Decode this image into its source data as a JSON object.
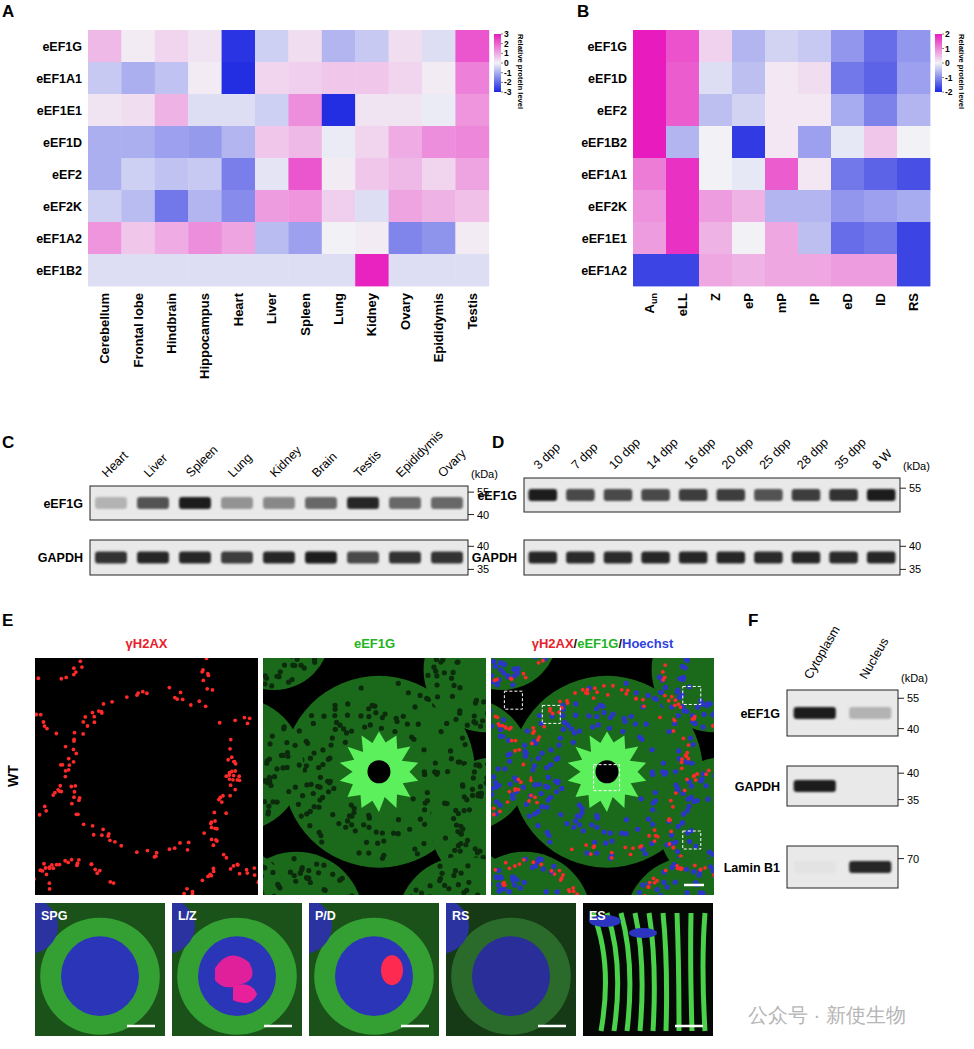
{
  "chart_data": [
    {
      "type": "heatmap",
      "panel": "A",
      "rows": [
        "eEF1G",
        "eEF1A1",
        "eEF1E1",
        "eEF1D",
        "eEF2",
        "eEF2K",
        "eEF1A2",
        "eEF1B2"
      ],
      "columns": [
        "Cerebellum",
        "Frontal lobe",
        "Hindbrain",
        "Hippocampus",
        "Heart",
        "Liver",
        "Spleen",
        "Lung",
        "Kidney",
        "Ovary",
        "Epididymis",
        "Testis"
      ],
      "values": [
        [
          0.8,
          0.1,
          0.4,
          0.2,
          -2.8,
          -0.5,
          0.3,
          -0.9,
          -0.6,
          0.3,
          -0.3,
          2.2
        ],
        [
          -0.6,
          -1.0,
          -0.7,
          0.1,
          -2.9,
          0.4,
          0.5,
          0.6,
          0.6,
          0.4,
          0.1,
          1.6
        ],
        [
          0.2,
          0.3,
          0.9,
          -0.3,
          -0.3,
          -0.5,
          1.4,
          -2.9,
          0.2,
          0.2,
          -0.1,
          1.3
        ],
        [
          -1.0,
          -1.0,
          -1.2,
          -1.3,
          -0.9,
          0.6,
          0.8,
          -0.1,
          0.4,
          1.0,
          1.4,
          1.5
        ],
        [
          -1.0,
          -0.5,
          -0.7,
          -0.6,
          -1.7,
          -0.2,
          2.2,
          0.1,
          0.6,
          0.8,
          0.4,
          1.1
        ],
        [
          -0.5,
          -0.8,
          -1.8,
          -0.9,
          -1.5,
          1.2,
          1.3,
          0.5,
          -0.3,
          1.1,
          0.9,
          0.7
        ],
        [
          1.3,
          0.6,
          1.0,
          1.4,
          1.1,
          -0.8,
          -1.2,
          0.0,
          0.1,
          -1.6,
          -1.4,
          0.1
        ],
        [
          -0.3,
          -0.3,
          -0.3,
          -0.3,
          -0.3,
          -0.3,
          -0.3,
          -0.3,
          2.9,
          -0.3,
          -0.3,
          -0.3
        ]
      ],
      "colorbar": {
        "range": [
          -3,
          3
        ],
        "ticks": [
          3,
          2,
          1,
          0,
          -1,
          -2,
          -3
        ],
        "label": "Relative protein level"
      }
    },
    {
      "type": "heatmap",
      "panel": "B",
      "rows": [
        "eEF1G",
        "eEF1D",
        "eEF2",
        "eEF1B2",
        "eEF1A1",
        "eEF2K",
        "eEF1E1",
        "eEF1A2"
      ],
      "columns": [
        {
          "text": "A",
          "subscript": "un"
        },
        "eLL",
        "Z",
        "eP",
        "mP",
        "lP",
        "eD",
        "lD",
        "RS"
      ],
      "values": [
        [
          2.2,
          1.5,
          0.3,
          -0.6,
          -0.3,
          -0.4,
          -0.9,
          -1.3,
          -0.9
        ],
        [
          2.2,
          1.4,
          -0.2,
          -0.5,
          0.1,
          0.2,
          -1.2,
          -1.4,
          -0.8
        ],
        [
          2.2,
          1.4,
          -0.5,
          -0.3,
          0.1,
          0.1,
          -0.7,
          -1.1,
          -0.6
        ],
        [
          2.2,
          -0.6,
          0.0,
          -1.8,
          0.1,
          -0.8,
          -0.1,
          0.4,
          0.0
        ],
        [
          1.1,
          1.8,
          0.0,
          -0.1,
          1.4,
          0.1,
          -1.2,
          -1.4,
          -1.6
        ],
        [
          0.9,
          1.8,
          0.8,
          0.6,
          -0.6,
          -0.6,
          -0.9,
          -0.8,
          -0.7
        ],
        [
          0.8,
          1.8,
          0.6,
          0.0,
          0.7,
          -0.5,
          -1.3,
          -1.2,
          -1.7
        ],
        [
          -1.7,
          -1.7,
          0.7,
          0.6,
          0.7,
          0.7,
          0.8,
          0.8,
          -1.7
        ]
      ],
      "colorbar": {
        "range": [
          -2,
          2
        ],
        "ticks": [
          2,
          1,
          0,
          -1,
          -2
        ],
        "label": "Relative protein level"
      }
    }
  ],
  "blots": [
    {
      "panel": "C",
      "unit": "(kDa)",
      "lanes": [
        "Heart",
        "Liver",
        "Spleen",
        "Lung",
        "Kidney",
        "Brain",
        "Testis",
        "Epididymis",
        "Ovary"
      ],
      "rows": [
        {
          "name": "eEF1G",
          "intensity": [
            0.25,
            0.7,
            0.95,
            0.4,
            0.45,
            0.6,
            0.9,
            0.6,
            0.6
          ],
          "mw": [
            55,
            40
          ]
        },
        {
          "name": "GAPDH",
          "intensity": [
            0.85,
            0.9,
            0.9,
            0.8,
            0.9,
            0.95,
            0.75,
            0.85,
            0.85
          ],
          "mw": [
            40,
            35
          ]
        }
      ]
    },
    {
      "panel": "D",
      "unit": "(kDa)",
      "lanes": [
        "3 dpp",
        "7 dpp",
        "10 dpp",
        "14 dpp",
        "16 dpp",
        "20 dpp",
        "25 dpp",
        "28 dpp",
        "35 dpp",
        "8 W"
      ],
      "rows": [
        {
          "name": "eEF1G",
          "intensity": [
            0.95,
            0.75,
            0.75,
            0.75,
            0.8,
            0.8,
            0.7,
            0.8,
            0.85,
            0.95
          ],
          "mw": [
            55
          ]
        },
        {
          "name": "GAPDH",
          "intensity": [
            0.9,
            0.88,
            0.88,
            0.9,
            0.9,
            0.9,
            0.88,
            0.9,
            0.88,
            0.9
          ],
          "mw": [
            40,
            35
          ]
        }
      ]
    },
    {
      "panel": "F",
      "unit": "(kDa)",
      "lanes": [
        "Cytoplasm",
        "Nucleus"
      ],
      "rows": [
        {
          "name": "eEF1G",
          "intensity": [
            0.95,
            0.25
          ],
          "mw": [
            55,
            40
          ]
        },
        {
          "name": "GAPDH",
          "intensity": [
            0.95,
            0.0
          ],
          "mw": [
            40,
            35
          ]
        },
        {
          "name": "Lamin B1",
          "intensity": [
            0.03,
            0.9
          ],
          "mw": [
            70
          ]
        }
      ]
    }
  ],
  "microscopy": {
    "panel": "E",
    "genotype": "WT",
    "channels": [
      {
        "name": "γH2AX",
        "color": "#e8202a"
      },
      {
        "name": "eEF1G",
        "color": "#22b422"
      },
      {
        "name": "Hoechst",
        "color": "#2f3fe0"
      }
    ],
    "separator": "/",
    "insets": [
      "SPG",
      "L/Z",
      "P/D",
      "RS",
      "ES"
    ]
  },
  "watermark": "公众号 · 新使生物"
}
